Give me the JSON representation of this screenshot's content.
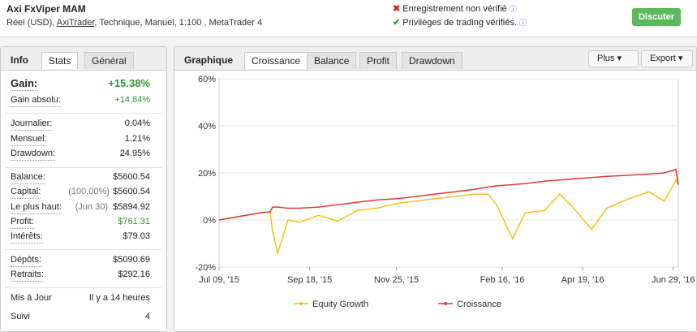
{
  "header": {
    "title": "Axi FxViper MAM",
    "account": "Réel (USD),",
    "broker": "AxiTrader",
    "details": ", Technique, Manuel, 1:100 , MetaTrader 4",
    "status_1": "Enregistrement non vérifié",
    "status_2": "Privilèges de trading vérifiés.",
    "button": "Discuter"
  },
  "info_panel": {
    "tabs": [
      "Info",
      "Stats",
      "Général"
    ],
    "rows": [
      {
        "label": "Gain:",
        "value": "+15.38%",
        "color": "#2a9a2a"
      },
      {
        "label": "Gain absolu:",
        "value": "+14.84%",
        "color": "#2a9a2a"
      },
      {
        "label": "Journalier:",
        "value": "0.04%"
      },
      {
        "label": "Mensuel:",
        "value": "1.21%"
      },
      {
        "label": "Drawdown:",
        "value": "24.95%"
      },
      {
        "label": "Balance:",
        "value": "$5600.54"
      },
      {
        "label": "Capital:",
        "note": "(100.00%)",
        "value": "$5600.54"
      },
      {
        "label": "Le plus haut:",
        "note": "(Jun 30)",
        "value": "$5894.92"
      },
      {
        "label": "Profit:",
        "value": "$761.31",
        "color": "#2a9a2a"
      },
      {
        "label": "Intérêts:",
        "value": "$79.03"
      },
      {
        "label": "Dépôts:",
        "value": "$5090.69"
      },
      {
        "label": "Retraits:",
        "value": "$292.16"
      },
      {
        "label": "Mis à Jour",
        "value": "Il y a 14 heures"
      },
      {
        "label": "Suivi",
        "value": "4"
      }
    ]
  },
  "chart_panel": {
    "title": "Graphique",
    "tabs": [
      "Croissance",
      "Balance",
      "Profit",
      "Drawdown"
    ],
    "buttons": [
      "Plus",
      "Export"
    ]
  },
  "chart_data": {
    "type": "line",
    "x": [
      "2015-07-09",
      "2015-07-25",
      "2015-08-10",
      "2015-08-18",
      "2015-08-20",
      "2015-08-24",
      "2015-09-01",
      "2015-09-10",
      "2015-09-25",
      "2015-10-10",
      "2015-10-25",
      "2015-11-10",
      "2015-11-25",
      "2015-12-10",
      "2015-12-25",
      "2016-01-10",
      "2016-01-25",
      "2016-02-05",
      "2016-02-12",
      "2016-02-24",
      "2016-03-05",
      "2016-03-20",
      "2016-04-01",
      "2016-04-12",
      "2016-04-26",
      "2016-05-08",
      "2016-05-25",
      "2016-06-10",
      "2016-06-22",
      "2016-07-01",
      "2016-07-03"
    ],
    "series": [
      {
        "name": "Equity Growth",
        "color": "#f0c419",
        "values": [
          0,
          1.5,
          3,
          3.5,
          -5,
          -14,
          0,
          -1,
          2,
          -0.5,
          4,
          5,
          7,
          8,
          9,
          10,
          11,
          11,
          6,
          -8,
          3,
          4,
          11,
          5,
          -4,
          5,
          9,
          12,
          8,
          17,
          15
        ]
      },
      {
        "name": "Croissance",
        "color": "#e03a3a",
        "values": [
          0,
          1.5,
          3,
          3.5,
          5.5,
          5.5,
          5,
          5,
          5.5,
          6.5,
          7.5,
          8.5,
          9,
          10,
          11,
          12,
          13,
          14,
          14.5,
          15,
          15.5,
          16.5,
          17,
          17.5,
          18,
          18.5,
          19,
          19.5,
          20,
          21.5,
          15
        ]
      }
    ],
    "xlim": [
      "2015-07-09",
      "2016-07-03"
    ],
    "xticks": [
      {
        "value": "2015-07-09",
        "label": "Jul 09, '15"
      },
      {
        "value": "2015-09-18",
        "label": "Sep 18, '15"
      },
      {
        "value": "2015-11-25",
        "label": "Nov 25, '15"
      },
      {
        "value": "2016-02-16",
        "label": "Feb 16, '16"
      },
      {
        "value": "2016-04-19",
        "label": "Apr 19, '16"
      },
      {
        "value": "2016-06-29",
        "label": "Jun 29, '16"
      }
    ],
    "ylim": [
      -20,
      60
    ],
    "yticks": [
      {
        "value": -20,
        "label": "-20%"
      },
      {
        "value": 0,
        "label": "0%"
      },
      {
        "value": 20,
        "label": "20%"
      },
      {
        "value": 40,
        "label": "40%"
      },
      {
        "value": 60,
        "label": "60%"
      }
    ],
    "grid": true
  }
}
